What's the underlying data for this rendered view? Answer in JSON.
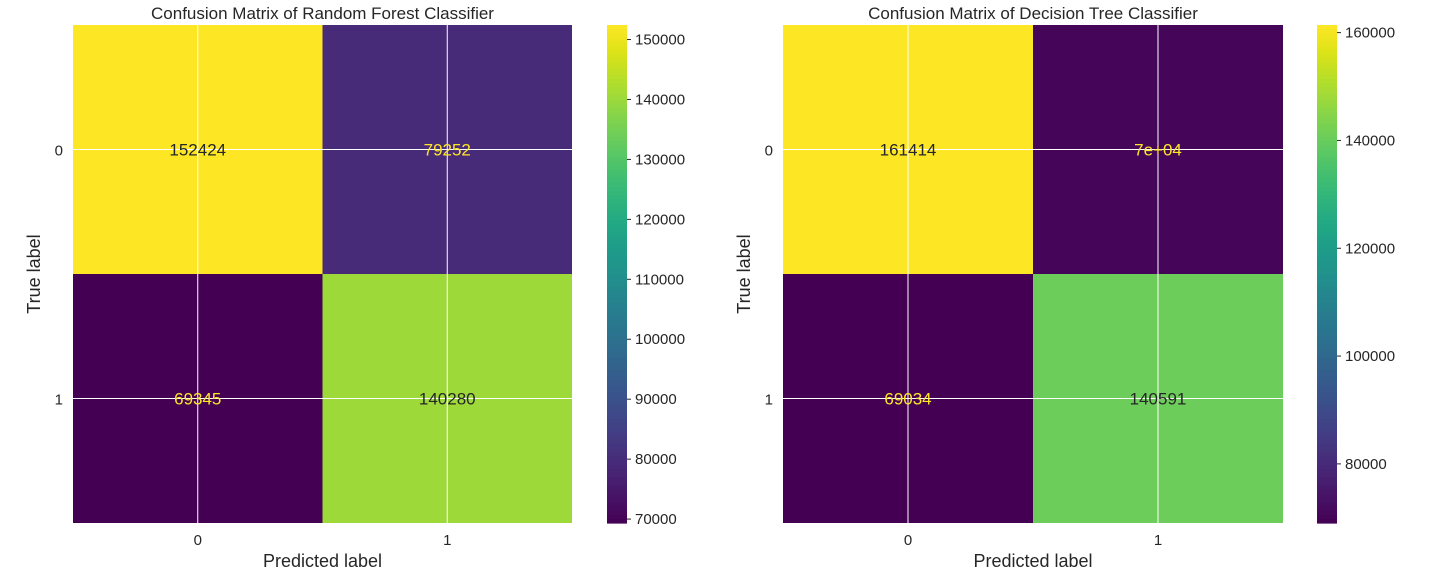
{
  "chart_data": [
    {
      "type": "heatmap",
      "title": "Confusion Matrix of Random Forest Classifier",
      "xlabel": "Predicted label",
      "ylabel": "True label",
      "x_categories": [
        "0",
        "1"
      ],
      "y_categories": [
        "0",
        "1"
      ],
      "values": [
        [
          152424,
          79252
        ],
        [
          69345,
          140280
        ]
      ],
      "cell_labels": [
        [
          "152424",
          "79252"
        ],
        [
          "69345",
          "140280"
        ]
      ],
      "colormap": "viridis",
      "colorbar": {
        "range": [
          69345,
          152424
        ],
        "ticks": [
          70000,
          80000,
          90000,
          100000,
          110000,
          120000,
          130000,
          140000,
          150000
        ],
        "tick_labels": [
          "70000",
          "80000",
          "90000",
          "100000",
          "110000",
          "120000",
          "130000",
          "140000",
          "150000"
        ]
      },
      "grid": true
    },
    {
      "type": "heatmap",
      "title": "Confusion Matrix of Decision Tree Classifier",
      "xlabel": "Predicted label",
      "ylabel": "True label",
      "x_categories": [
        "0",
        "1"
      ],
      "y_categories": [
        "0",
        "1"
      ],
      "values": [
        [
          161414,
          70262
        ],
        [
          69034,
          140591
        ]
      ],
      "cell_labels": [
        [
          "161414",
          "7e+04"
        ],
        [
          "69034",
          "140591"
        ]
      ],
      "colormap": "viridis",
      "colorbar": {
        "range": [
          69034,
          161414
        ],
        "ticks": [
          80000,
          100000,
          120000,
          140000,
          160000
        ],
        "tick_labels": [
          "80000",
          "100000",
          "120000",
          "140000",
          "160000"
        ]
      },
      "grid": true
    }
  ],
  "colors": {
    "viridis_low": "#440154",
    "viridis_high": "#fde725",
    "text_light": "#fde725",
    "text_dark": "#262626",
    "grid": "#ffffff"
  }
}
